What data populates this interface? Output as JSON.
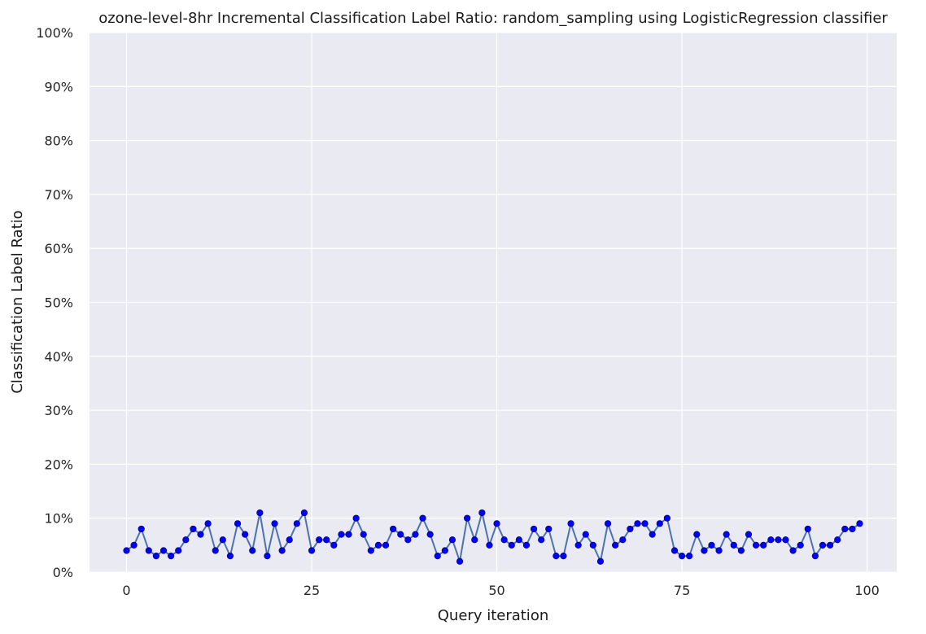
{
  "chart_data": {
    "type": "line",
    "title": "ozone-level-8hr Incremental Classification Label Ratio: random_sampling using LogisticRegression classifier",
    "xlabel": "Query iteration",
    "ylabel": "Classification Label Ratio",
    "xlim": [
      -5,
      104
    ],
    "ylim": [
      0,
      100
    ],
    "x_ticks": [
      0,
      25,
      50,
      75,
      100
    ],
    "y_ticks": [
      0,
      10,
      20,
      30,
      40,
      50,
      60,
      70,
      80,
      90,
      100
    ],
    "y_tick_labels": [
      "0%",
      "10%",
      "20%",
      "30%",
      "40%",
      "50%",
      "60%",
      "70%",
      "80%",
      "90%",
      "100%"
    ],
    "grid": true,
    "background": "#eaeaf2",
    "line_color": "#4c72b0",
    "marker_color": "#0000ff",
    "series": [
      {
        "x": [
          0,
          1,
          2,
          3,
          4,
          5,
          6,
          7,
          8,
          9,
          10,
          11,
          12,
          13,
          14,
          15,
          16,
          17,
          18,
          19,
          20,
          21,
          22,
          23,
          24,
          25,
          26,
          27,
          28,
          29,
          30,
          31,
          32,
          33,
          34,
          35,
          36,
          37,
          38,
          39,
          40,
          41,
          42,
          43,
          44,
          45,
          46,
          47,
          48,
          49,
          50,
          51,
          52,
          53,
          54,
          55,
          56,
          57,
          58,
          59,
          60,
          61,
          62,
          63,
          64,
          65,
          66,
          67,
          68,
          69,
          70,
          71,
          72,
          73,
          74,
          75,
          76,
          77,
          78,
          79,
          80,
          81,
          82,
          83,
          84,
          85,
          86,
          87,
          88,
          89,
          90,
          91,
          92,
          93,
          94,
          95,
          96,
          97,
          98,
          99
        ],
        "values": [
          4,
          5,
          8,
          4,
          3,
          4,
          3,
          4,
          6,
          8,
          7,
          9,
          4,
          6,
          3,
          9,
          7,
          4,
          11,
          3,
          9,
          4,
          6,
          9,
          11,
          4,
          6,
          6,
          5,
          7,
          7,
          10,
          7,
          4,
          5,
          5,
          8,
          7,
          6,
          7,
          10,
          7,
          3,
          4,
          6,
          2,
          10,
          6,
          11,
          5,
          9,
          6,
          5,
          6,
          5,
          8,
          6,
          8,
          3,
          3,
          9,
          5,
          7,
          5,
          2,
          9,
          5,
          6,
          8,
          9,
          9,
          7,
          9,
          10,
          4,
          3,
          3,
          7,
          4,
          5,
          4,
          7,
          5,
          4,
          7,
          5,
          5,
          6,
          6,
          6,
          4,
          5,
          8,
          3,
          5,
          5,
          6,
          8,
          8,
          9
        ]
      }
    ]
  }
}
